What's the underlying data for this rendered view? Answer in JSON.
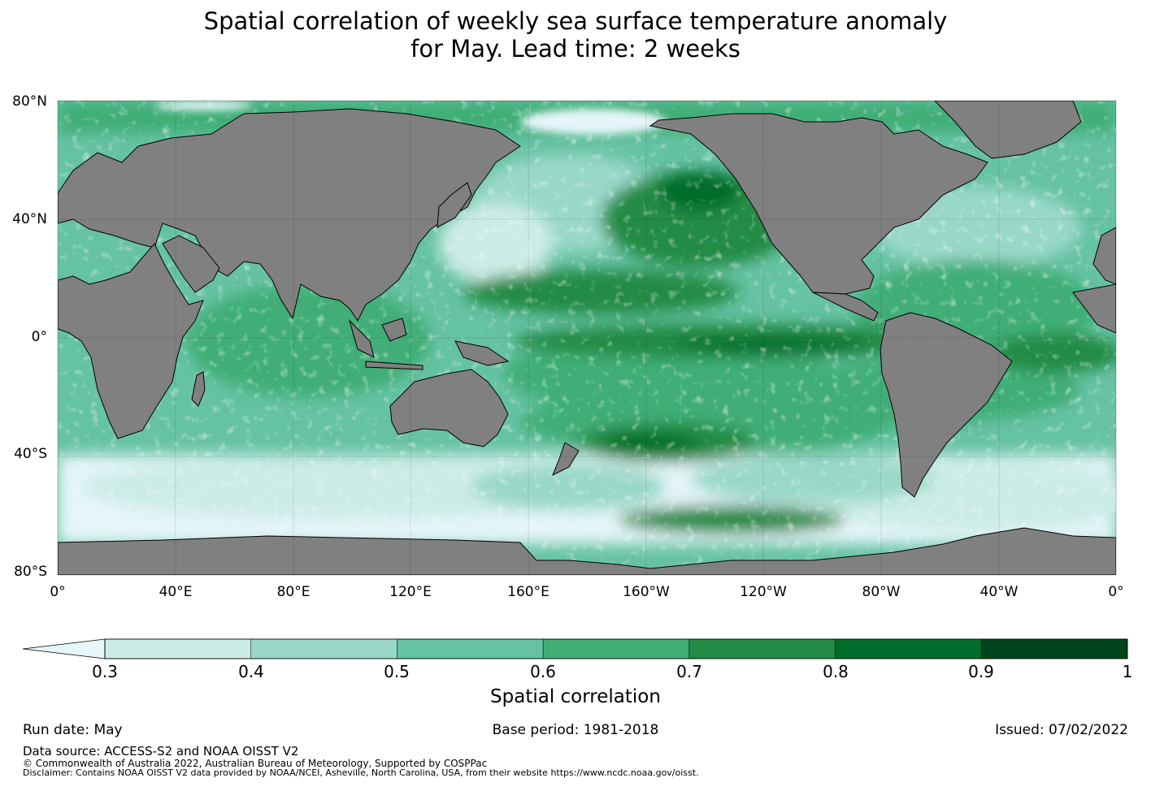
{
  "title": {
    "line1": "Spatial correlation of weekly sea surface temperature anomaly",
    "line2": "for May. Lead time: 2 weeks"
  },
  "map": {
    "lat_labels": [
      "80°N",
      "40°N",
      "0°",
      "40°S",
      "80°S"
    ],
    "lon_labels": [
      "0°",
      "40°E",
      "80°E",
      "120°E",
      "160°E",
      "160°W",
      "120°W",
      "80°W",
      "40°W",
      "0°"
    ],
    "land_color": "#808080",
    "ocean_low_color": "#e5f5f9"
  },
  "colorbar": {
    "ticks": [
      "0.3",
      "0.4",
      "0.5",
      "0.6",
      "0.7",
      "0.8",
      "0.9",
      "1"
    ],
    "colors": [
      "#ccece6",
      "#99d8c9",
      "#66c2a4",
      "#41ae76",
      "#238b45",
      "#006d2c",
      "#00441b"
    ],
    "extend_color": "#e5f5f9",
    "label": "Spatial correlation"
  },
  "footer": {
    "run_date": "Run date: May",
    "base_period": "Base period: 1981-2018",
    "issued": "Issued: 07/02/2022",
    "data_source": "Data source: ACCESS-S2 and NOAA OISST V2",
    "copyright": "© Commonwealth of Australia 2022, Australian Bureau of Meteorology, Supported by COSPPac",
    "disclaimer": "Disclaimer: Contains NOAA OISST V2 data provided by NOAA/NCEI, Asheville, North Carolina, USA, from their website https://www.ncdc.noaa.gov/oisst."
  }
}
